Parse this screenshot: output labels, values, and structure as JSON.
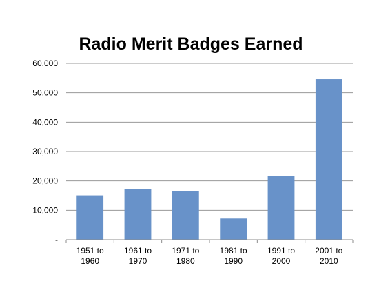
{
  "chart_data": {
    "type": "bar",
    "title": "Radio Merit Badges Earned",
    "xlabel": "",
    "ylabel": "",
    "categories": [
      [
        "1951 to",
        "1960"
      ],
      [
        "1961 to",
        "1970"
      ],
      [
        "1971 to",
        "1980"
      ],
      [
        "1981 to",
        "1990"
      ],
      [
        "1991 to",
        "2000"
      ],
      [
        "2001 to",
        "2010"
      ]
    ],
    "values": [
      15100,
      17200,
      16500,
      7200,
      21600,
      54600
    ],
    "ylim": [
      0,
      60000
    ],
    "yticks": [
      0,
      10000,
      20000,
      30000,
      40000,
      50000,
      60000
    ],
    "ytick_labels": [
      "-",
      "10,000",
      "20,000",
      "30,000",
      "40,000",
      "50,000",
      "60,000"
    ],
    "grid": true,
    "legend": "none",
    "colors": {
      "bar": "#6892c9",
      "grid": "#9a9a9a",
      "axis": "#8c8c8c"
    }
  }
}
